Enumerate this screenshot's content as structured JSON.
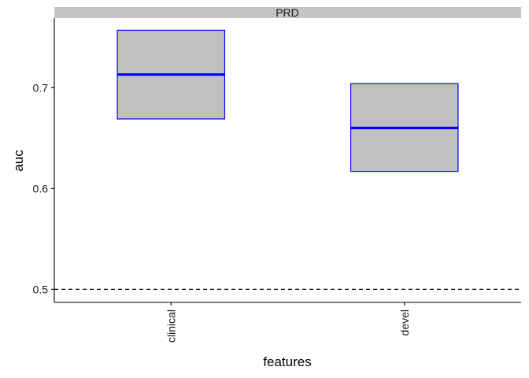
{
  "chart_data": {
    "type": "boxplot",
    "facet_label": "PRD",
    "xlabel": "features",
    "ylabel": "auc",
    "categories": [
      "clinical",
      "devel"
    ],
    "boxes": [
      {
        "category": "clinical",
        "lower": 0.669,
        "median": 0.713,
        "upper": 0.757
      },
      {
        "category": "devel",
        "lower": 0.617,
        "median": 0.66,
        "upper": 0.704
      }
    ],
    "yticks": [
      0.5,
      0.6,
      0.7
    ],
    "ytick_labels": [
      "0.5",
      "0.6",
      "0.7"
    ],
    "ylim": [
      0.487,
      0.769
    ],
    "reference_line": 0.5,
    "grid": false,
    "colors": {
      "box_fill": "#c0c0c0",
      "box_border": "#0000ff",
      "median": "#0000ff",
      "strip": "#c4c4c4",
      "axis": "#000000",
      "reference_line": "#000000"
    }
  }
}
